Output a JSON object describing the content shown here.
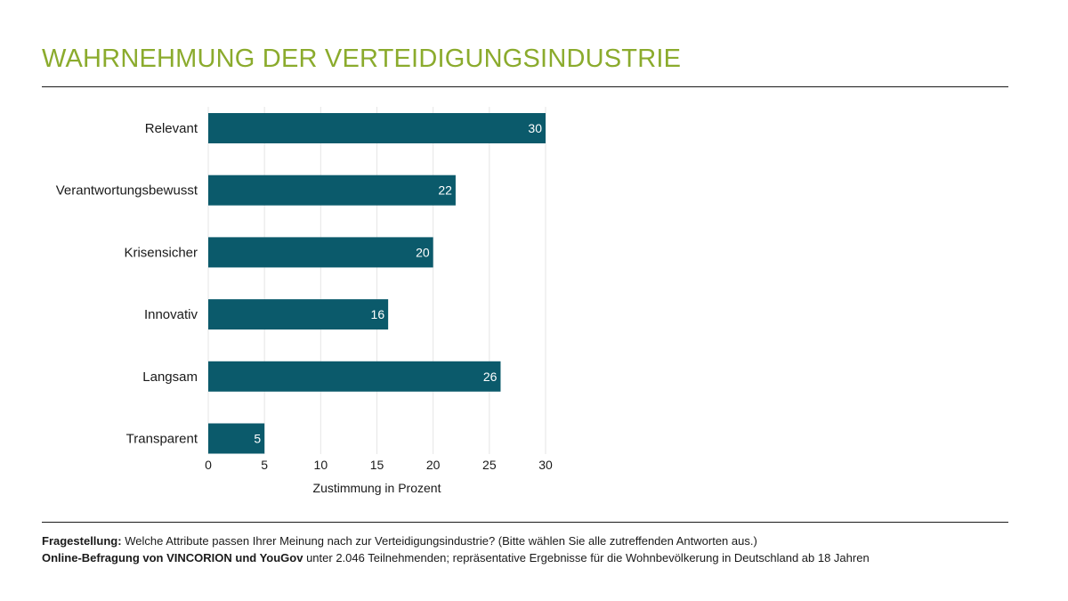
{
  "title": "WAHRNEHMUNG DER VERTEIDIGUNGSINDUSTRIE",
  "colors": {
    "title": "#8bab2d",
    "bar": "#0b5a6b",
    "grid": "#e6e6e6",
    "rule": "#1a1a1a"
  },
  "footer": {
    "question_label": "Fragestellung:",
    "question_text": " Welche Attribute passen Ihrer Meinung nach zur Verteidigungsindustrie? (Bitte wählen Sie alle zutreffenden Antworten aus.)",
    "source_label": "Online-Befragung von VINCORION und YouGov",
    "source_text": " unter 2.046 Teilnehmenden; repräsentative Ergebnisse für die Wohnbevölkerung in Deutschland ab 18 Jahren"
  },
  "chart_data": {
    "type": "bar",
    "orientation": "horizontal",
    "categories": [
      "Relevant",
      "Verantwortungsbewusst",
      "Krisensicher",
      "Innovativ",
      "Langsam",
      "Transparent"
    ],
    "values": [
      30,
      22,
      20,
      16,
      26,
      5
    ],
    "xlabel": "Zustimmung in Prozent",
    "ylabel": "",
    "xlim": [
      0,
      30
    ],
    "ticks": [
      "0",
      "5",
      "10",
      "15",
      "20",
      "25",
      "30"
    ],
    "grid": "vertical",
    "legend": "none"
  }
}
